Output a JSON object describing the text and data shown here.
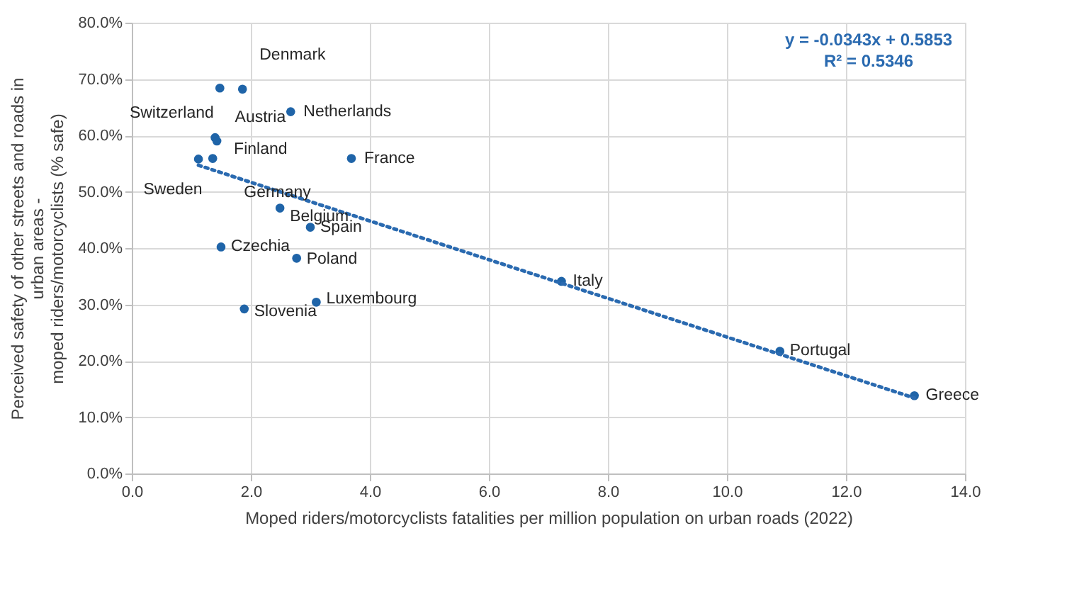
{
  "chart_data": {
    "type": "scatter",
    "xlabel": "Moped riders/motorcyclists fatalities per million population on urban roads (2022)",
    "ylabel": "Perceived safety of other streets and roads in\nurban areas -\nmoped riders/motorcyclists  (% safe)",
    "xlim": [
      0,
      14
    ],
    "xticks": [
      {
        "value": 0,
        "label": "0.0"
      },
      {
        "value": 2,
        "label": "2.0"
      },
      {
        "value": 4,
        "label": "4.0"
      },
      {
        "value": 6,
        "label": "6.0"
      },
      {
        "value": 8,
        "label": "8.0"
      },
      {
        "value": 10,
        "label": "10.0"
      },
      {
        "value": 12,
        "label": "12.0"
      },
      {
        "value": 14,
        "label": "14.0"
      }
    ],
    "ylim": [
      0,
      80
    ],
    "yticks": [
      {
        "value": 0,
        "label": "0.0%"
      },
      {
        "value": 10,
        "label": "10.0%"
      },
      {
        "value": 20,
        "label": "20.0%"
      },
      {
        "value": 30,
        "label": "30.0%"
      },
      {
        "value": 40,
        "label": "40.0%"
      },
      {
        "value": 50,
        "label": "50.0%"
      },
      {
        "value": 60,
        "label": "60.0%"
      },
      {
        "value": 70,
        "label": "70.0%"
      },
      {
        "value": 80,
        "label": "80.0%"
      }
    ],
    "grid": true,
    "series": [
      {
        "marker": "circle",
        "color": "#1f64a8",
        "x": [
          1.48,
          1.86,
          2.67,
          1.4,
          1.43,
          3.69,
          1.36,
          1.12,
          2.49,
          3.0,
          1.5,
          2.77,
          3.1,
          1.89,
          7.22,
          10.89,
          13.15
        ],
        "values": [
          68.4,
          68.2,
          64.2,
          59.6,
          59.0,
          55.9,
          55.9,
          55.8,
          47.1,
          43.7,
          40.2,
          38.2,
          30.4,
          29.2,
          34.1,
          21.7,
          13.8
        ]
      },
      {
        "type": "line",
        "color": "#2a6ab0",
        "line_style": "dotted",
        "x": [
          1.12,
          13.15
        ],
        "values": [
          54.7,
          13.4
        ]
      }
    ],
    "annotations": [
      "y = -0.0343x + 0.5853",
      "R² = 0.5346",
      {
        "text": "Switzerland",
        "x": 1.48,
        "y": 68.4
      },
      {
        "text": "Denmark",
        "x": 1.86,
        "y": 68.2
      },
      {
        "text": "Netherlands",
        "x": 2.67,
        "y": 64.2
      },
      {
        "text": "Austria",
        "x": 1.4,
        "y": 59.6
      },
      {
        "text": "Finland",
        "x": 1.43,
        "y": 59.0
      },
      {
        "text": "France",
        "x": 3.69,
        "y": 55.9
      },
      {
        "text": "Germany",
        "x": 1.36,
        "y": 55.9
      },
      {
        "text": "Sweden",
        "x": 1.12,
        "y": 55.8
      },
      {
        "text": "Belgium",
        "x": 2.49,
        "y": 47.1
      },
      {
        "text": "Spain",
        "x": 3.0,
        "y": 43.7
      },
      {
        "text": "Czechia",
        "x": 1.5,
        "y": 40.2
      },
      {
        "text": "Poland",
        "x": 2.77,
        "y": 38.2
      },
      {
        "text": "Luxembourg",
        "x": 3.1,
        "y": 30.4
      },
      {
        "text": "Slovenia",
        "x": 1.89,
        "y": 29.2
      },
      {
        "text": "Italy",
        "x": 7.22,
        "y": 34.1
      },
      {
        "text": "Portugal",
        "x": 10.89,
        "y": 21.7
      },
      {
        "text": "Greece",
        "x": 13.15,
        "y": 13.8
      }
    ]
  }
}
